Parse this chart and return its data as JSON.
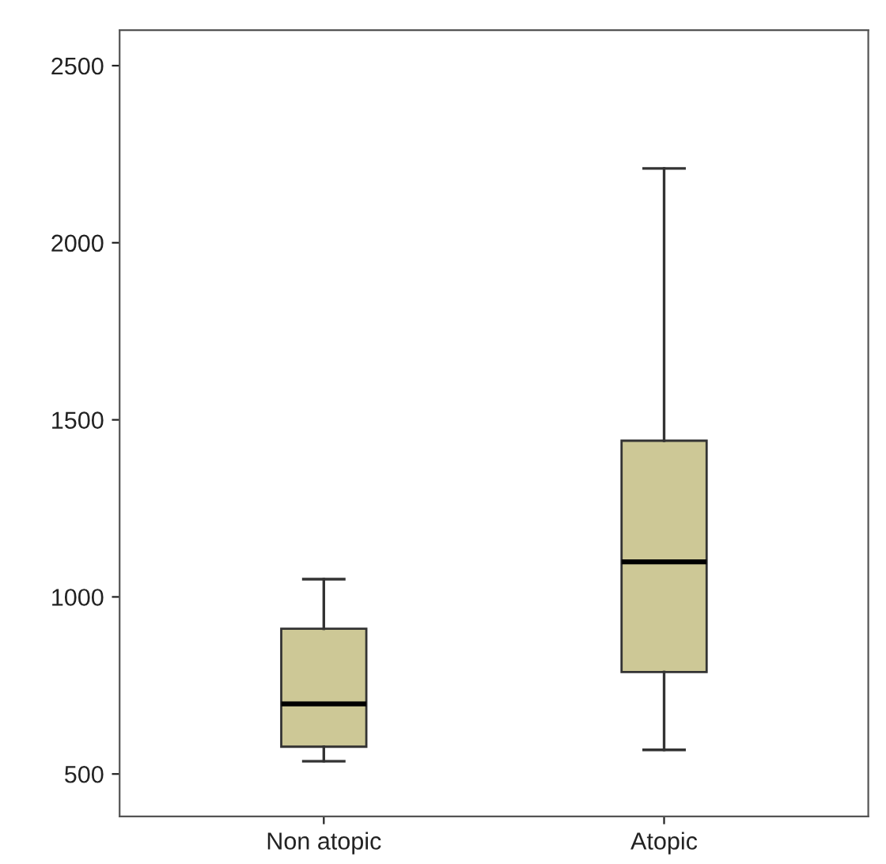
{
  "chart_data": {
    "type": "box",
    "categories": [
      "Non atopic",
      "Atopic"
    ],
    "boxes": [
      {
        "low": 536,
        "q1": 577,
        "median": 698,
        "q3": 910,
        "high": 1050
      },
      {
        "low": 568,
        "q1": 788,
        "median": 1099,
        "q3": 1441,
        "high": 2210
      }
    ],
    "color": "#cdc896",
    "ylim": [
      380,
      2600
    ],
    "yticks": [
      500,
      1000,
      1500,
      2000,
      2500
    ],
    "grid": false
  }
}
